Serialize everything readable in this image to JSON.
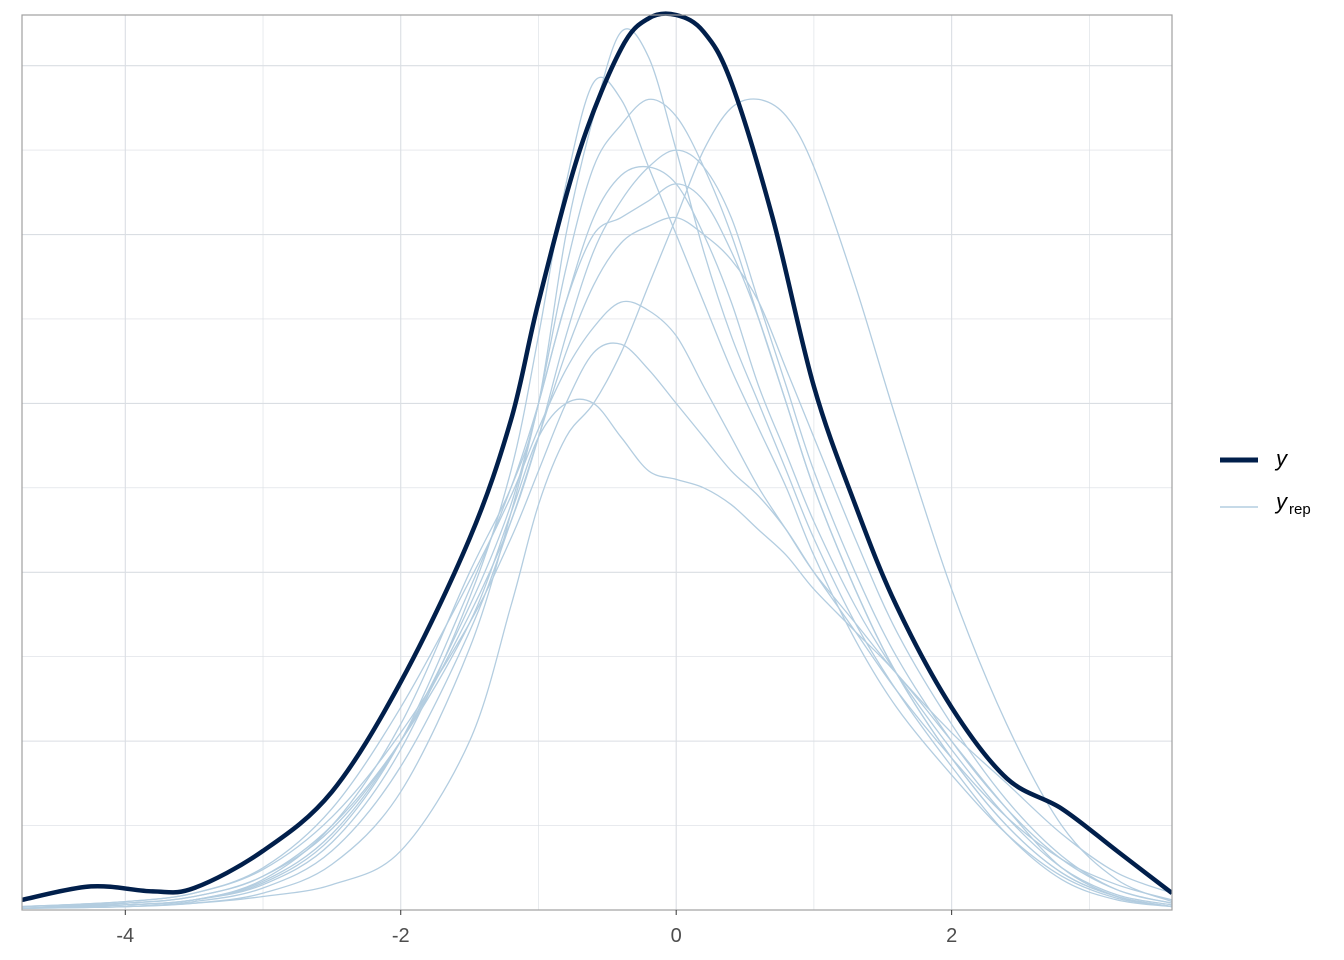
{
  "chart_data": {
    "type": "line",
    "title": "",
    "xlabel": "",
    "ylabel": "",
    "xlim": [
      -4.75,
      3.6
    ],
    "ylim": [
      0,
      0.53
    ],
    "x_ticks": [
      -4,
      -2,
      0,
      2
    ],
    "x_tick_labels": [
      "-4",
      "-2",
      "0",
      "2"
    ],
    "y_tick_labels_shown": false,
    "grid": true,
    "legend_position": "right",
    "legend": [
      {
        "key": "y",
        "label": "y",
        "subscript": ""
      },
      {
        "key": "yrep",
        "label": "y",
        "subscript": "rep"
      }
    ],
    "colors": {
      "y": "#011f4b",
      "yrep": "#b3cde0",
      "grid": "#dadee3",
      "panel_border": "#a0a0a0"
    },
    "series": [
      {
        "name": "y",
        "kind": "y",
        "x": [
          -4.75,
          -4.25,
          -3.8,
          -3.5,
          -3.0,
          -2.5,
          -2.0,
          -1.5,
          -1.2,
          -1.0,
          -0.7,
          -0.4,
          -0.2,
          0.0,
          0.2,
          0.4,
          0.7,
          1.0,
          1.3,
          1.6,
          2.0,
          2.4,
          2.8,
          3.2,
          3.6
        ],
        "y": [
          0.006,
          0.014,
          0.011,
          0.013,
          0.035,
          0.07,
          0.135,
          0.22,
          0.29,
          0.36,
          0.45,
          0.51,
          0.528,
          0.53,
          0.52,
          0.49,
          0.41,
          0.31,
          0.24,
          0.18,
          0.12,
          0.078,
          0.06,
          0.035,
          0.01
        ]
      },
      {
        "x": [
          -4.75,
          -4.0,
          -3.5,
          -3.0,
          -2.5,
          -2.0,
          -1.5,
          -1.2,
          -1.0,
          -0.8,
          -0.6,
          -0.4,
          -0.2,
          0.0,
          0.2,
          0.4,
          0.6,
          0.8,
          1.0,
          1.3,
          1.6,
          2.0,
          2.4,
          2.8,
          3.2,
          3.6
        ],
        "y": [
          0.001,
          0.004,
          0.008,
          0.02,
          0.05,
          0.1,
          0.17,
          0.235,
          0.28,
          0.3,
          0.3,
          0.28,
          0.26,
          0.255,
          0.25,
          0.24,
          0.225,
          0.21,
          0.19,
          0.165,
          0.14,
          0.1,
          0.06,
          0.025,
          0.008,
          0.002
        ]
      },
      {
        "x": [
          -4.75,
          -4.0,
          -3.5,
          -3.0,
          -2.5,
          -2.0,
          -1.5,
          -1.2,
          -1.0,
          -0.8,
          -0.6,
          -0.4,
          -0.2,
          0.0,
          0.2,
          0.4,
          0.6,
          0.8,
          1.0,
          1.3,
          1.6,
          2.0,
          2.4,
          2.8,
          3.2,
          3.6
        ],
        "y": [
          0.001,
          0.003,
          0.006,
          0.018,
          0.05,
          0.11,
          0.2,
          0.25,
          0.3,
          0.4,
          0.47,
          0.52,
          0.505,
          0.45,
          0.39,
          0.34,
          0.3,
          0.26,
          0.22,
          0.17,
          0.13,
          0.085,
          0.045,
          0.018,
          0.006,
          0.002
        ]
      },
      {
        "x": [
          -4.75,
          -4.0,
          -3.5,
          -3.0,
          -2.5,
          -2.0,
          -1.5,
          -1.2,
          -1.0,
          -0.8,
          -0.6,
          -0.4,
          -0.2,
          0.0,
          0.2,
          0.4,
          0.6,
          0.8,
          1.0,
          1.3,
          1.6,
          2.0,
          2.4,
          2.8,
          3.2,
          3.6
        ],
        "y": [
          0.001,
          0.003,
          0.006,
          0.015,
          0.04,
          0.095,
          0.185,
          0.26,
          0.34,
          0.43,
          0.49,
          0.48,
          0.44,
          0.4,
          0.36,
          0.32,
          0.285,
          0.25,
          0.21,
          0.16,
          0.12,
          0.08,
          0.045,
          0.02,
          0.007,
          0.002
        ]
      },
      {
        "x": [
          -4.75,
          -4.0,
          -3.5,
          -3.0,
          -2.5,
          -2.0,
          -1.5,
          -1.2,
          -1.0,
          -0.8,
          -0.6,
          -0.4,
          -0.2,
          0.0,
          0.2,
          0.4,
          0.6,
          0.8,
          1.0,
          1.3,
          1.6,
          2.0,
          2.4,
          2.8,
          3.2,
          3.6
        ],
        "y": [
          0.002,
          0.004,
          0.008,
          0.02,
          0.048,
          0.1,
          0.175,
          0.23,
          0.28,
          0.34,
          0.39,
          0.42,
          0.44,
          0.45,
          0.44,
          0.41,
          0.36,
          0.31,
          0.26,
          0.2,
          0.15,
          0.1,
          0.06,
          0.03,
          0.012,
          0.004
        ]
      },
      {
        "x": [
          -4.75,
          -4.0,
          -3.5,
          -3.0,
          -2.5,
          -2.0,
          -1.5,
          -1.2,
          -1.0,
          -0.8,
          -0.6,
          -0.4,
          -0.2,
          0.0,
          0.2,
          0.4,
          0.6,
          0.8,
          1.0,
          1.3,
          1.6,
          2.0,
          2.4,
          2.8,
          3.2,
          3.6
        ],
        "y": [
          0.001,
          0.003,
          0.006,
          0.017,
          0.045,
          0.1,
          0.18,
          0.24,
          0.3,
          0.36,
          0.41,
          0.435,
          0.44,
          0.43,
          0.4,
          0.36,
          0.31,
          0.27,
          0.23,
          0.18,
          0.14,
          0.095,
          0.055,
          0.025,
          0.009,
          0.003
        ]
      },
      {
        "x": [
          -4.75,
          -4.0,
          -3.5,
          -3.0,
          -2.5,
          -2.0,
          -1.5,
          -1.2,
          -1.0,
          -0.8,
          -0.6,
          -0.4,
          -0.2,
          0.0,
          0.2,
          0.4,
          0.6,
          0.8,
          1.0,
          1.3,
          1.6,
          2.0,
          2.4,
          2.8,
          3.2,
          3.6
        ],
        "y": [
          0.002,
          0.005,
          0.01,
          0.024,
          0.055,
          0.105,
          0.17,
          0.22,
          0.26,
          0.3,
          0.33,
          0.335,
          0.32,
          0.3,
          0.28,
          0.26,
          0.245,
          0.225,
          0.2,
          0.165,
          0.13,
          0.09,
          0.055,
          0.03,
          0.015,
          0.006
        ]
      },
      {
        "x": [
          -4.75,
          -4.0,
          -3.5,
          -3.0,
          -2.5,
          -2.0,
          -1.5,
          -1.2,
          -1.0,
          -0.8,
          -0.6,
          -0.4,
          -0.2,
          0.0,
          0.2,
          0.4,
          0.6,
          0.8,
          1.0,
          1.3,
          1.6,
          2.0,
          2.4,
          2.8,
          3.2,
          3.6
        ],
        "y": [
          0.002,
          0.005,
          0.01,
          0.025,
          0.06,
          0.12,
          0.195,
          0.245,
          0.285,
          0.32,
          0.345,
          0.36,
          0.355,
          0.34,
          0.31,
          0.28,
          0.25,
          0.225,
          0.2,
          0.17,
          0.14,
          0.105,
          0.075,
          0.045,
          0.022,
          0.01
        ]
      },
      {
        "x": [
          -4.75,
          -4.0,
          -3.5,
          -3.0,
          -2.5,
          -2.0,
          -1.5,
          -1.2,
          -1.0,
          -0.8,
          -0.6,
          -0.4,
          -0.2,
          0.0,
          0.2,
          0.4,
          0.6,
          0.8,
          1.0,
          1.3,
          1.6,
          2.0,
          2.4,
          2.8,
          3.2,
          3.6
        ],
        "y": [
          0.001,
          0.003,
          0.006,
          0.016,
          0.043,
          0.1,
          0.19,
          0.25,
          0.3,
          0.36,
          0.4,
          0.41,
          0.42,
          0.43,
          0.42,
          0.39,
          0.35,
          0.3,
          0.25,
          0.19,
          0.14,
          0.09,
          0.05,
          0.022,
          0.008,
          0.002
        ]
      },
      {
        "x": [
          -4.75,
          -4.0,
          -3.5,
          -3.0,
          -2.5,
          -2.0,
          -1.5,
          -1.2,
          -1.0,
          -0.8,
          -0.6,
          -0.4,
          -0.2,
          0.0,
          0.2,
          0.4,
          0.6,
          0.8,
          1.0,
          1.3,
          1.6,
          2.0,
          2.4,
          2.8,
          3.2,
          3.6
        ],
        "y": [
          0.001,
          0.002,
          0.005,
          0.013,
          0.035,
          0.085,
          0.165,
          0.23,
          0.28,
          0.33,
          0.37,
          0.395,
          0.405,
          0.41,
          0.4,
          0.385,
          0.36,
          0.32,
          0.28,
          0.22,
          0.165,
          0.11,
          0.065,
          0.032,
          0.012,
          0.004
        ]
      },
      {
        "x": [
          -4.75,
          -4.0,
          -3.5,
          -3.0,
          -2.5,
          -2.0,
          -1.5,
          -1.2,
          -1.0,
          -0.8,
          -0.6,
          -0.4,
          -0.2,
          0.0,
          0.2,
          0.4,
          0.6,
          0.8,
          1.0,
          1.3,
          1.6,
          2.0,
          2.4,
          2.8,
          3.2,
          3.6
        ],
        "y": [
          0.001,
          0.002,
          0.004,
          0.01,
          0.027,
          0.07,
          0.155,
          0.235,
          0.3,
          0.38,
          0.44,
          0.465,
          0.48,
          0.47,
          0.44,
          0.4,
          0.35,
          0.3,
          0.25,
          0.19,
          0.14,
          0.09,
          0.05,
          0.022,
          0.008,
          0.002
        ]
      },
      {
        "x": [
          -4.75,
          -4.0,
          -3.5,
          -3.0,
          -2.5,
          -2.0,
          -1.5,
          -1.2,
          -1.0,
          -0.8,
          -0.6,
          -0.4,
          -0.2,
          0.0,
          0.2,
          0.4,
          0.6,
          0.8,
          1.0,
          1.3,
          1.6,
          2.0,
          2.4,
          2.8,
          3.2,
          3.6
        ],
        "y": [
          0.001,
          0.002,
          0.004,
          0.008,
          0.015,
          0.035,
          0.1,
          0.18,
          0.24,
          0.28,
          0.3,
          0.33,
          0.37,
          0.41,
          0.45,
          0.475,
          0.48,
          0.47,
          0.44,
          0.37,
          0.29,
          0.19,
          0.11,
          0.05,
          0.018,
          0.005
        ]
      }
    ]
  }
}
